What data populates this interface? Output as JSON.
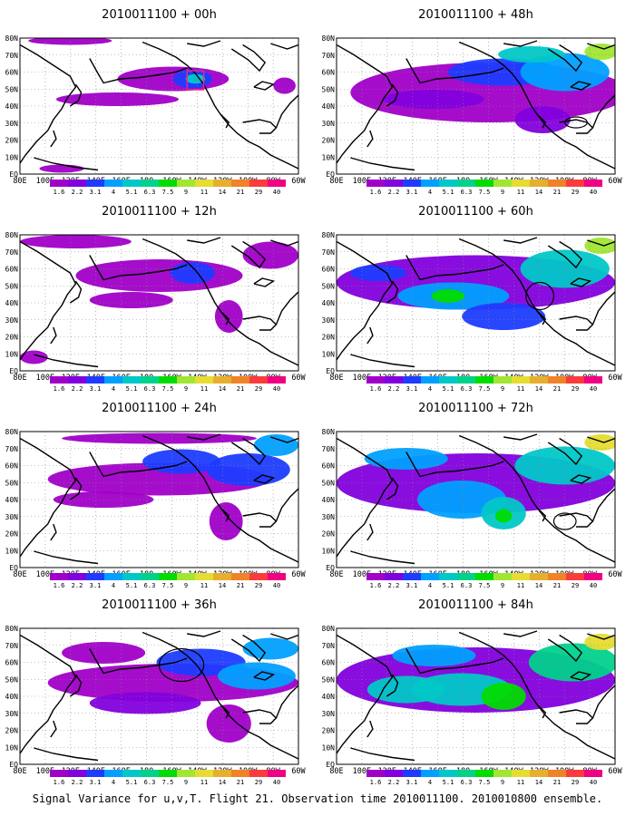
{
  "caption": "Signal Variance for u,v,T. Flight 21. Observation time 2010011100. 2010010800 ensemble.",
  "chart_data": {
    "type": "heatmap",
    "layout": "4 rows x 2 columns of map panels",
    "lon_ticks": [
      "80E",
      "100E",
      "120E",
      "140E",
      "160E",
      "180",
      "160W",
      "140W",
      "120W",
      "100W",
      "80W",
      "60W"
    ],
    "lat_ticks": [
      "80N",
      "70N",
      "60N",
      "50N",
      "40N",
      "30N",
      "20N",
      "10N",
      "EQ"
    ],
    "grid": "dotted",
    "colorbar": {
      "levels": [
        "1.6",
        "2.2",
        "3.1",
        "4",
        "5.1",
        "6.3",
        "7.5",
        "9",
        "11",
        "14",
        "21",
        "29",
        "40"
      ],
      "colors": [
        "#a000c8",
        "#8200dc",
        "#1e3cff",
        "#00a0ff",
        "#00c8c8",
        "#00d28c",
        "#00dc00",
        "#a0e632",
        "#e6dc32",
        "#e6af2d",
        "#f08228",
        "#fa3c3c",
        "#f00082"
      ]
    },
    "panels": [
      {
        "title": "2010011100 + 00h",
        "lead_h": 0,
        "col": 0,
        "row": 0
      },
      {
        "title": "2010011100 + 48h",
        "lead_h": 48,
        "col": 1,
        "row": 0
      },
      {
        "title": "2010011100 + 12h",
        "lead_h": 12,
        "col": 0,
        "row": 1
      },
      {
        "title": "2010011100 + 60h",
        "lead_h": 60,
        "col": 1,
        "row": 1
      },
      {
        "title": "2010011100 + 24h",
        "lead_h": 24,
        "col": 0,
        "row": 2
      },
      {
        "title": "2010011100 + 72h",
        "lead_h": 72,
        "col": 1,
        "row": 2
      },
      {
        "title": "2010011100 + 36h",
        "lead_h": 36,
        "col": 0,
        "row": 3
      },
      {
        "title": "2010011100 + 84h",
        "lead_h": 84,
        "col": 1,
        "row": 3
      }
    ]
  }
}
